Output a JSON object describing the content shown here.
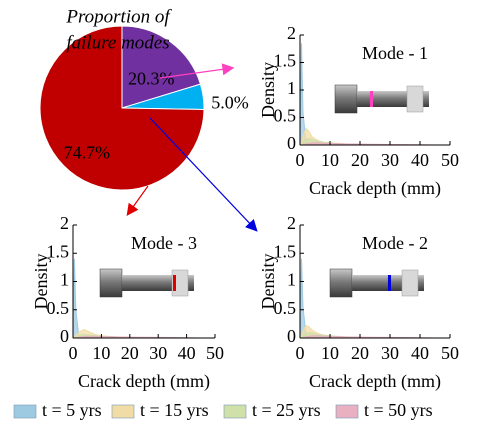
{
  "chart_data": [
    {
      "type": "pie",
      "title": [
        "Proportion of",
        "failure modes"
      ],
      "values": [
        20.3,
        5.0,
        74.7
      ],
      "value_labels": [
        "20.3%",
        "5.0%",
        "74.7%"
      ],
      "colors": [
        "#7030a0",
        "#00b0f0",
        "#c00000"
      ]
    },
    {
      "type": "area",
      "annotation": "Mode - 1",
      "xlabel": "Crack depth (mm)",
      "ylabel": "Density",
      "xlim": [
        0,
        50
      ],
      "xticks": [
        0,
        10,
        20,
        30,
        40,
        50
      ],
      "ylim": [
        0,
        2
      ],
      "yticks": [
        0,
        0.5,
        1,
        1.5,
        2
      ],
      "x": [
        0,
        0.5,
        1,
        2,
        3,
        4,
        6,
        8,
        10,
        15,
        20,
        30,
        40,
        45
      ],
      "series": [
        {
          "name": "t = 5 yrs",
          "color": "#9ecae1",
          "values": [
            0,
            1.85,
            0.6,
            0.05,
            0,
            0,
            0,
            0,
            0,
            0,
            0,
            0,
            0,
            0
          ]
        },
        {
          "name": "t = 15 yrs",
          "color": "#f2dca6",
          "values": [
            0,
            0.05,
            0.15,
            0.3,
            0.25,
            0.15,
            0.08,
            0.05,
            0.03,
            0.01,
            0,
            0,
            0,
            0
          ]
        },
        {
          "name": "t = 25 yrs",
          "color": "#cfe0a8",
          "values": [
            0,
            0,
            0.03,
            0.1,
            0.12,
            0.1,
            0.07,
            0.05,
            0.04,
            0.02,
            0.01,
            0,
            0,
            0
          ]
        },
        {
          "name": "t = 50 yrs",
          "color": "#e8b0c0",
          "values": [
            0,
            0,
            0,
            0.02,
            0.03,
            0.04,
            0.04,
            0.03,
            0.03,
            0.02,
            0.015,
            0.01,
            0.005,
            0
          ]
        }
      ]
    },
    {
      "type": "area",
      "annotation": "Mode - 3",
      "xlabel": "Crack depth (mm)",
      "ylabel": "Density",
      "xlim": [
        0,
        50
      ],
      "xticks": [
        0,
        10,
        20,
        30,
        40,
        50
      ],
      "ylim": [
        0,
        2
      ],
      "yticks": [
        0,
        0.5,
        1,
        1.5,
        2
      ],
      "x": [
        0,
        0.5,
        1,
        2,
        3,
        4,
        6,
        8,
        10,
        15,
        20,
        30,
        40,
        45
      ],
      "series": [
        {
          "name": "t = 5 yrs",
          "color": "#9ecae1",
          "values": [
            0,
            1.4,
            0.5,
            0.05,
            0,
            0,
            0,
            0,
            0,
            0,
            0,
            0,
            0,
            0
          ]
        },
        {
          "name": "t = 15 yrs",
          "color": "#f2dca6",
          "values": [
            0,
            0.02,
            0.05,
            0.1,
            0.13,
            0.15,
            0.1,
            0.06,
            0.04,
            0.02,
            0.01,
            0,
            0,
            0
          ]
        },
        {
          "name": "t = 25 yrs",
          "color": "#cfe0a8",
          "values": [
            0,
            0,
            0.01,
            0.04,
            0.06,
            0.06,
            0.05,
            0.04,
            0.03,
            0.02,
            0.01,
            0.005,
            0,
            0
          ]
        },
        {
          "name": "t = 50 yrs",
          "color": "#e8b0c0",
          "values": [
            0,
            0,
            0,
            0.01,
            0.02,
            0.03,
            0.03,
            0.03,
            0.025,
            0.02,
            0.015,
            0.01,
            0.005,
            0
          ]
        }
      ]
    },
    {
      "type": "area",
      "annotation": "Mode - 2",
      "xlabel": "Crack depth (mm)",
      "ylabel": "Density",
      "xlim": [
        0,
        50
      ],
      "xticks": [
        0,
        10,
        20,
        30,
        40,
        50
      ],
      "ylim": [
        0,
        2
      ],
      "yticks": [
        0,
        0.5,
        1,
        1.5,
        2
      ],
      "x": [
        0,
        0.5,
        1,
        2,
        3,
        4,
        6,
        8,
        10,
        15,
        20,
        30,
        40,
        45
      ],
      "series": [
        {
          "name": "t = 5 yrs",
          "color": "#9ecae1",
          "values": [
            0,
            1.4,
            0.55,
            0.05,
            0,
            0,
            0,
            0,
            0,
            0,
            0,
            0,
            0,
            0
          ]
        },
        {
          "name": "t = 15 yrs",
          "color": "#f2dca6",
          "values": [
            0,
            0.04,
            0.12,
            0.22,
            0.2,
            0.14,
            0.08,
            0.05,
            0.03,
            0.01,
            0,
            0,
            0,
            0
          ]
        },
        {
          "name": "t = 25 yrs",
          "color": "#cfe0a8",
          "values": [
            0,
            0,
            0.02,
            0.08,
            0.1,
            0.09,
            0.06,
            0.05,
            0.04,
            0.02,
            0.01,
            0,
            0,
            0
          ]
        },
        {
          "name": "t = 50 yrs",
          "color": "#e8b0c0",
          "values": [
            0,
            0,
            0,
            0.02,
            0.03,
            0.04,
            0.04,
            0.03,
            0.03,
            0.02,
            0.015,
            0.01,
            0.005,
            0
          ]
        }
      ]
    }
  ]
}
